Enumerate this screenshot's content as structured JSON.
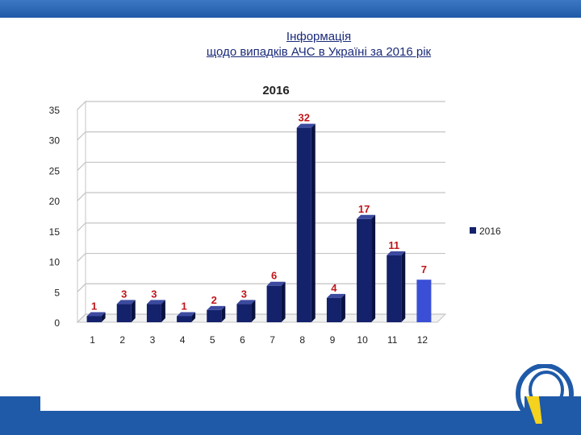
{
  "header": {
    "line1": "Інформація",
    "line2": "щодо  випадків АЧС  в Україні за 2016 рік"
  },
  "chart_data": {
    "type": "bar",
    "title": "2016",
    "categories": [
      "1",
      "2",
      "3",
      "4",
      "5",
      "6",
      "7",
      "8",
      "9",
      "10",
      "11",
      "12"
    ],
    "series": [
      {
        "name": "2016",
        "values": [
          1,
          3,
          3,
          1,
          2,
          3,
          6,
          32,
          4,
          17,
          11,
          7
        ]
      }
    ],
    "ylim": [
      0,
      35
    ],
    "yticks": [
      0,
      5,
      10,
      15,
      20,
      25,
      30,
      35
    ],
    "grid": true,
    "legend": "right",
    "colors": {
      "bar": "#14216b",
      "bar_highlight": "#3a4fd6",
      "label": "#c0161b"
    },
    "highlight_index": 11
  },
  "colors": {
    "brand": "#1f5aa8",
    "title": "#1a2a7a",
    "logo_yellow": "#f5d21d"
  }
}
